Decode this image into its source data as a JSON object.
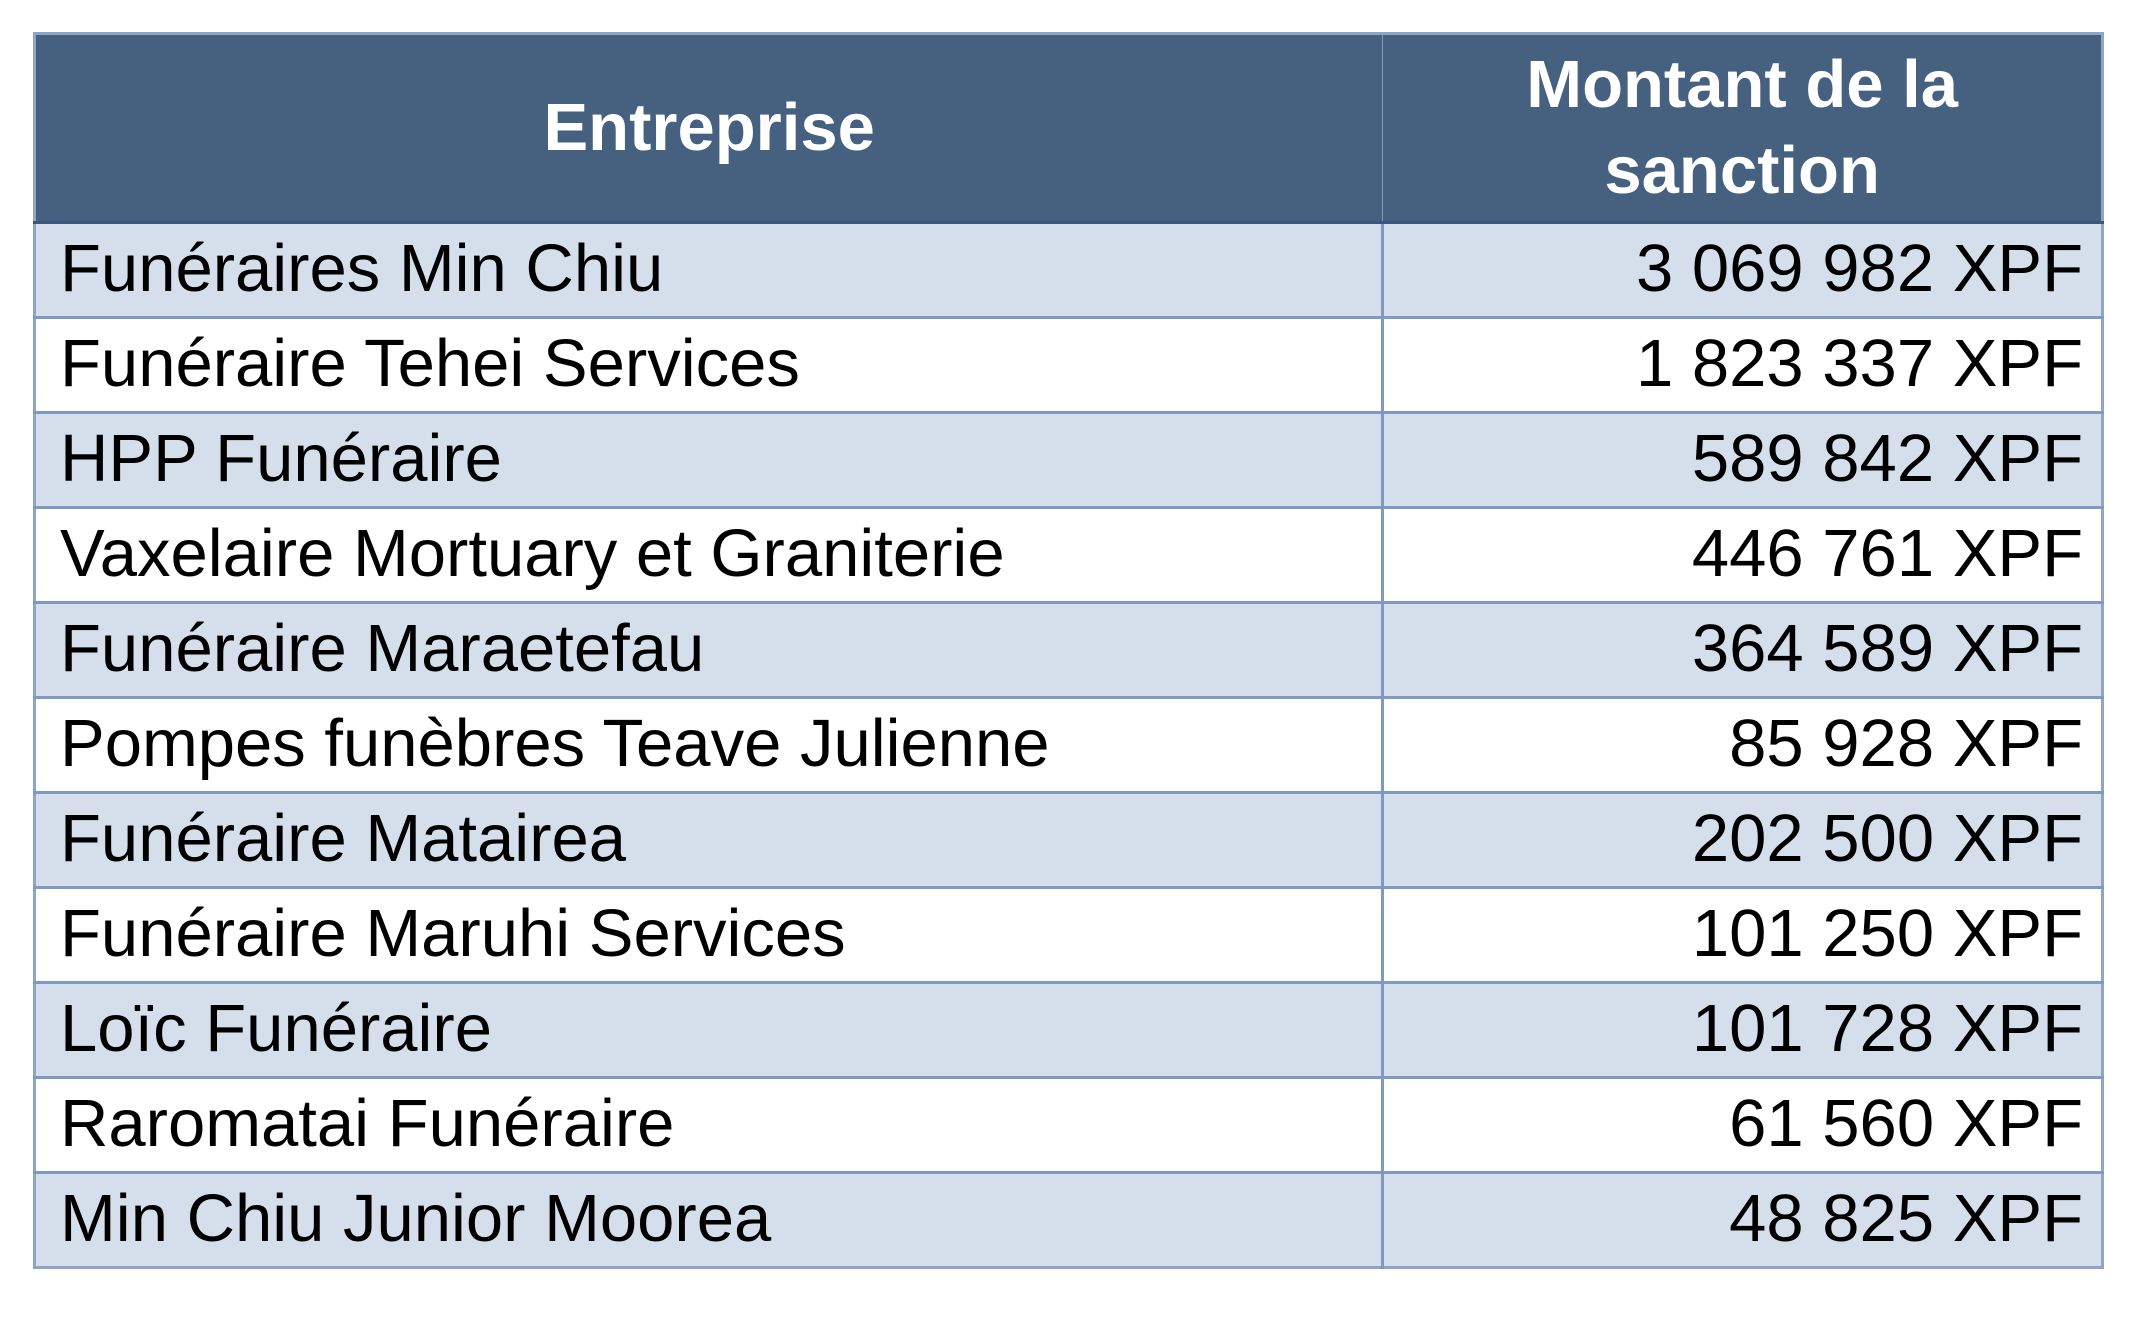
{
  "table": {
    "columns": [
      {
        "key": "entreprise",
        "label": "Entreprise"
      },
      {
        "key": "montant",
        "label": "Montant de la sanction"
      }
    ],
    "rows": [
      {
        "entreprise": "Funéraires Min Chiu",
        "montant": "3 069 982 XPF"
      },
      {
        "entreprise": "Funéraire Tehei Services",
        "montant": "1 823 337 XPF"
      },
      {
        "entreprise": "HPP Funéraire",
        "montant": "589 842 XPF"
      },
      {
        "entreprise": "Vaxelaire Mortuary et Graniterie",
        "montant": "446 761 XPF"
      },
      {
        "entreprise": "Funéraire Maraetefau",
        "montant": "364 589 XPF"
      },
      {
        "entreprise": "Pompes funèbres Teave Julienne",
        "montant": "85 928 XPF"
      },
      {
        "entreprise": "Funéraire Matairea",
        "montant": "202 500 XPF"
      },
      {
        "entreprise": "Funéraire Maruhi Services",
        "montant": "101 250 XPF"
      },
      {
        "entreprise": "Loïc Funéraire",
        "montant": "101 728 XPF"
      },
      {
        "entreprise": "Raromatai Funéraire",
        "montant": "61 560 XPF"
      },
      {
        "entreprise": "Min Chiu Junior Moorea",
        "montant": "48 825 XPF"
      }
    ]
  },
  "colors": {
    "header_bg": "#45617F",
    "header_text": "#FFFFFF",
    "row_alt_bg": "#D5DFEC",
    "row_bg": "#FFFFFF",
    "border": "#7F9AC2",
    "outer_border": "#8FA5C8",
    "header_divider": "#3A567A",
    "body_text": "#000000"
  },
  "chart_data": {
    "type": "table",
    "columns": [
      "Entreprise",
      "Montant de la sanction"
    ],
    "rows": [
      [
        "Funéraires Min Chiu",
        "3 069 982 XPF"
      ],
      [
        "Funéraire Tehei Services",
        "1 823 337 XPF"
      ],
      [
        "HPP Funéraire",
        "589 842 XPF"
      ],
      [
        "Vaxelaire Mortuary et Graniterie",
        "446 761 XPF"
      ],
      [
        "Funéraire Maraetefau",
        "364 589 XPF"
      ],
      [
        "Pompes funèbres Teave Julienne",
        "85 928 XPF"
      ],
      [
        "Funéraire Matairea",
        "202 500 XPF"
      ],
      [
        "Funéraire Maruhi Services",
        "101 250 XPF"
      ],
      [
        "Loïc Funéraire",
        "101 728 XPF"
      ],
      [
        "Raromatai Funéraire",
        "61 560 XPF"
      ],
      [
        "Min Chiu Junior Moorea",
        "48 825 XPF"
      ]
    ],
    "values_xpf": [
      3069982,
      1823337,
      589842,
      446761,
      364589,
      85928,
      202500,
      101250,
      101728,
      61560,
      48825
    ],
    "currency": "XPF",
    "layout": {
      "zebra_striping": true,
      "header_style": "dark-blue",
      "amount_alignment": "right"
    }
  }
}
